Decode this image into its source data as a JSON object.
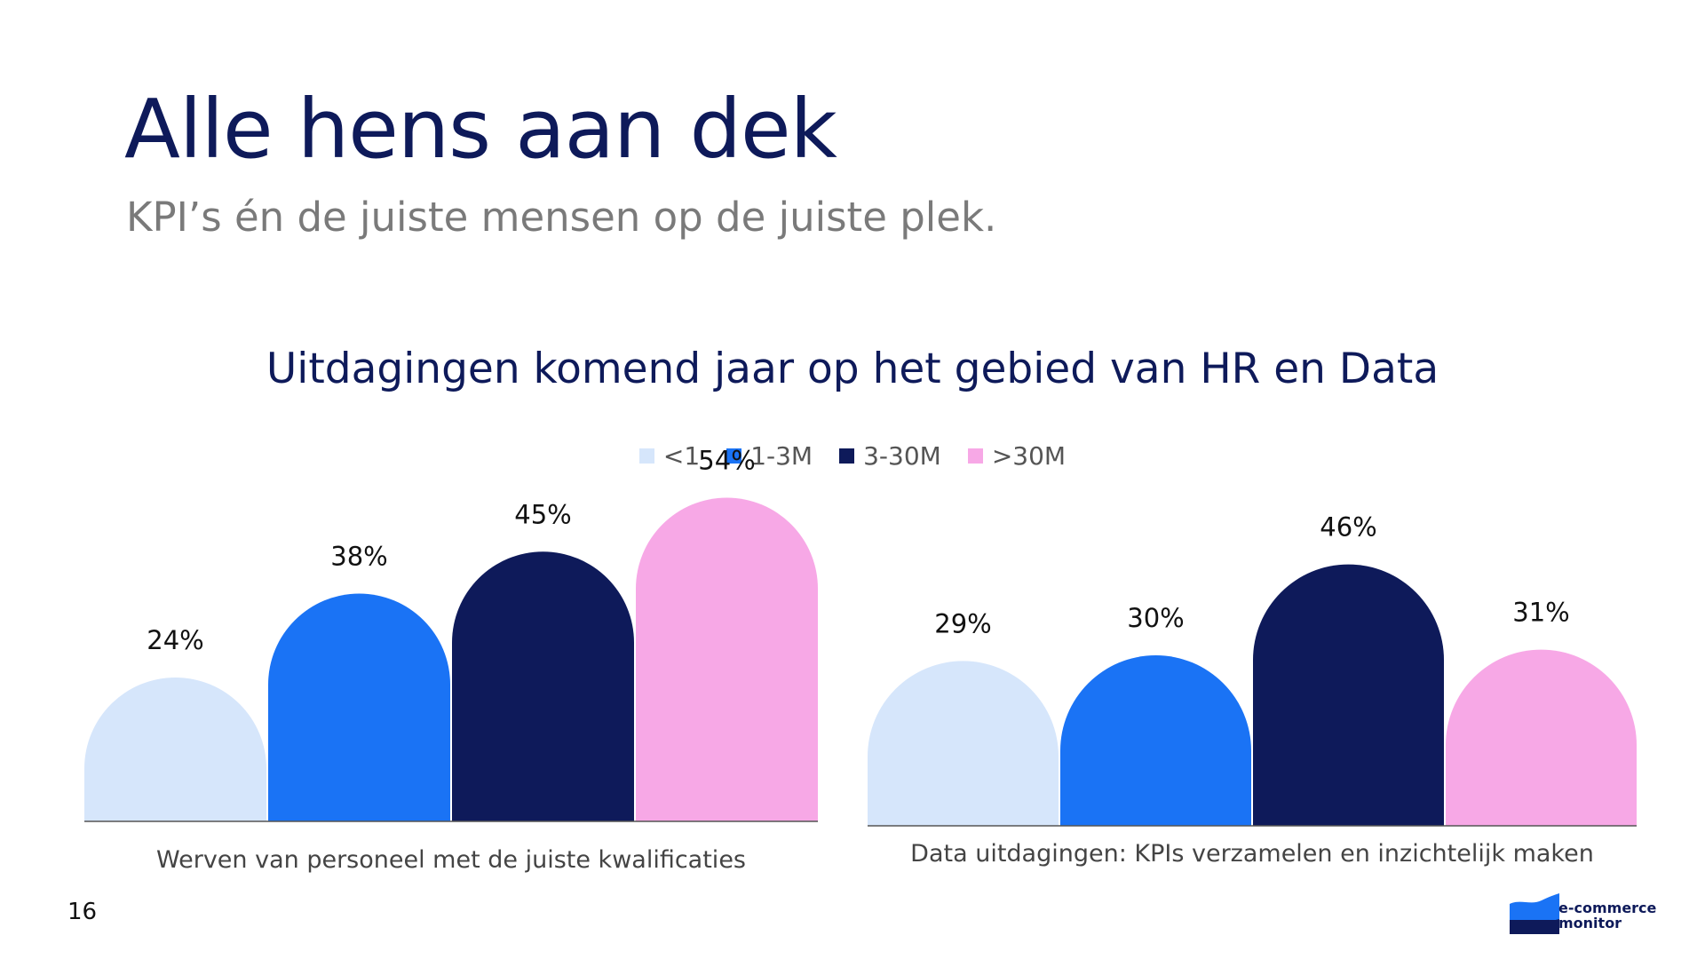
{
  "page": {
    "title": "Alle hens aan dek",
    "subtitle": "KPI’s én de juiste mensen op de juiste plek.",
    "page_number": "16",
    "logo_text_line1": "e-commerce",
    "logo_text_line2": "monitor"
  },
  "colors": {
    "title": "#0e1a5a",
    "subtitle": "#7a7a7a",
    "series": [
      "#d6e6fb",
      "#1a73f5",
      "#0e1a5a",
      "#f7a8e6"
    ]
  },
  "chart_data": {
    "type": "bar",
    "title": "Uitdagingen komend jaar op het gebied van HR en Data",
    "legend_position": "top-center",
    "grid": false,
    "series_names": [
      "<1",
      "1-3M",
      "3-30M",
      ">30M"
    ],
    "groups": [
      {
        "label": "Werven van personeel met de juiste kwalificaties",
        "values": [
          24,
          38,
          45,
          54
        ],
        "labels": [
          "24%",
          "38%",
          "45%",
          "54%"
        ]
      },
      {
        "label": "Data uitdagingen: KPIs verzamelen en inzichtelijk maken",
        "values": [
          29,
          30,
          46,
          31
        ],
        "labels": [
          "29%",
          "30%",
          "46%",
          "31%"
        ]
      }
    ]
  }
}
